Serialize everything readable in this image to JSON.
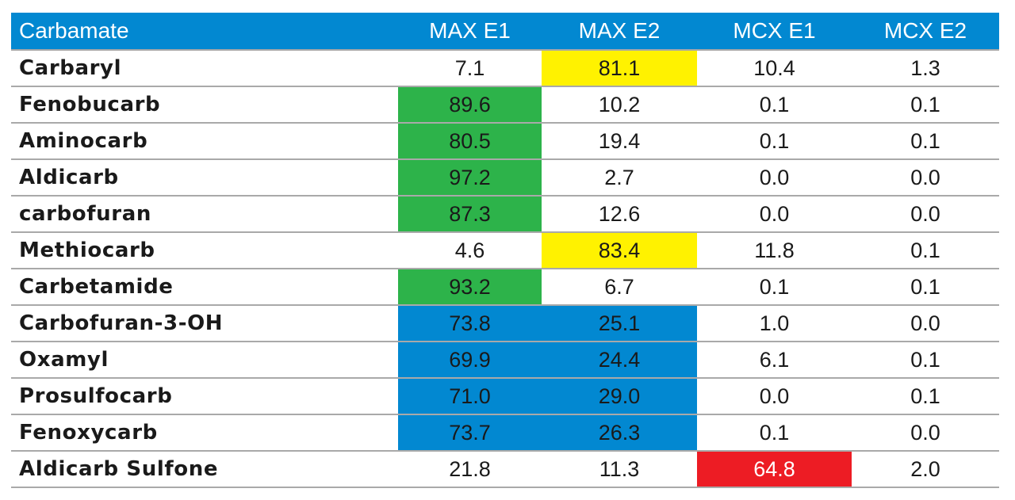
{
  "table": {
    "headers": [
      "Carbamate",
      "MAX E1",
      "MAX E2",
      "MCX E1",
      "MCX E2"
    ],
    "rows": [
      {
        "name": "Carbaryl",
        "values": [
          "7.1",
          "81.1",
          "10.4",
          "1.3"
        ],
        "highlight": [
          null,
          "yellow",
          null,
          null
        ]
      },
      {
        "name": "Fenobucarb",
        "values": [
          "89.6",
          "10.2",
          "0.1",
          "0.1"
        ],
        "highlight": [
          "green",
          null,
          null,
          null
        ]
      },
      {
        "name": "Aminocarb",
        "values": [
          "80.5",
          "19.4",
          "0.1",
          "0.1"
        ],
        "highlight": [
          "green",
          null,
          null,
          null
        ]
      },
      {
        "name": "Aldicarb",
        "values": [
          "97.2",
          "2.7",
          "0.0",
          "0.0"
        ],
        "highlight": [
          "green",
          null,
          null,
          null
        ]
      },
      {
        "name": "carbofuran",
        "values": [
          "87.3",
          "12.6",
          "0.0",
          "0.0"
        ],
        "highlight": [
          "green",
          null,
          null,
          null
        ]
      },
      {
        "name": "Methiocarb",
        "values": [
          "4.6",
          "83.4",
          "11.8",
          "0.1"
        ],
        "highlight": [
          null,
          "yellow",
          null,
          null
        ]
      },
      {
        "name": "Carbetamide",
        "values": [
          "93.2",
          "6.7",
          "0.1",
          "0.1"
        ],
        "highlight": [
          "green",
          null,
          null,
          null
        ]
      },
      {
        "name": "Carbofuran-3-OH",
        "values": [
          "73.8",
          "25.1",
          "1.0",
          "0.0"
        ],
        "highlight": [
          "blue",
          "blue",
          null,
          null
        ]
      },
      {
        "name": "Oxamyl",
        "values": [
          "69.9",
          "24.4",
          "6.1",
          "0.1"
        ],
        "highlight": [
          "blue",
          "blue",
          null,
          null
        ]
      },
      {
        "name": "Prosulfocarb",
        "values": [
          "71.0",
          "29.0",
          "0.0",
          "0.1"
        ],
        "highlight": [
          "blue",
          "blue",
          null,
          null
        ]
      },
      {
        "name": "Fenoxycarb",
        "values": [
          "73.7",
          "26.3",
          "0.1",
          "0.0"
        ],
        "highlight": [
          "blue",
          "blue",
          null,
          null
        ]
      },
      {
        "name": "Aldicarb Sulfone",
        "values": [
          "21.8",
          "11.3",
          "64.8",
          "2.0"
        ],
        "highlight": [
          null,
          null,
          "red",
          null
        ]
      }
    ]
  },
  "colors": {
    "header_bg": "#0288d1",
    "green": "#2db34a",
    "yellow": "#fff200",
    "blue": "#0288d1",
    "red": "#ed1c24"
  }
}
